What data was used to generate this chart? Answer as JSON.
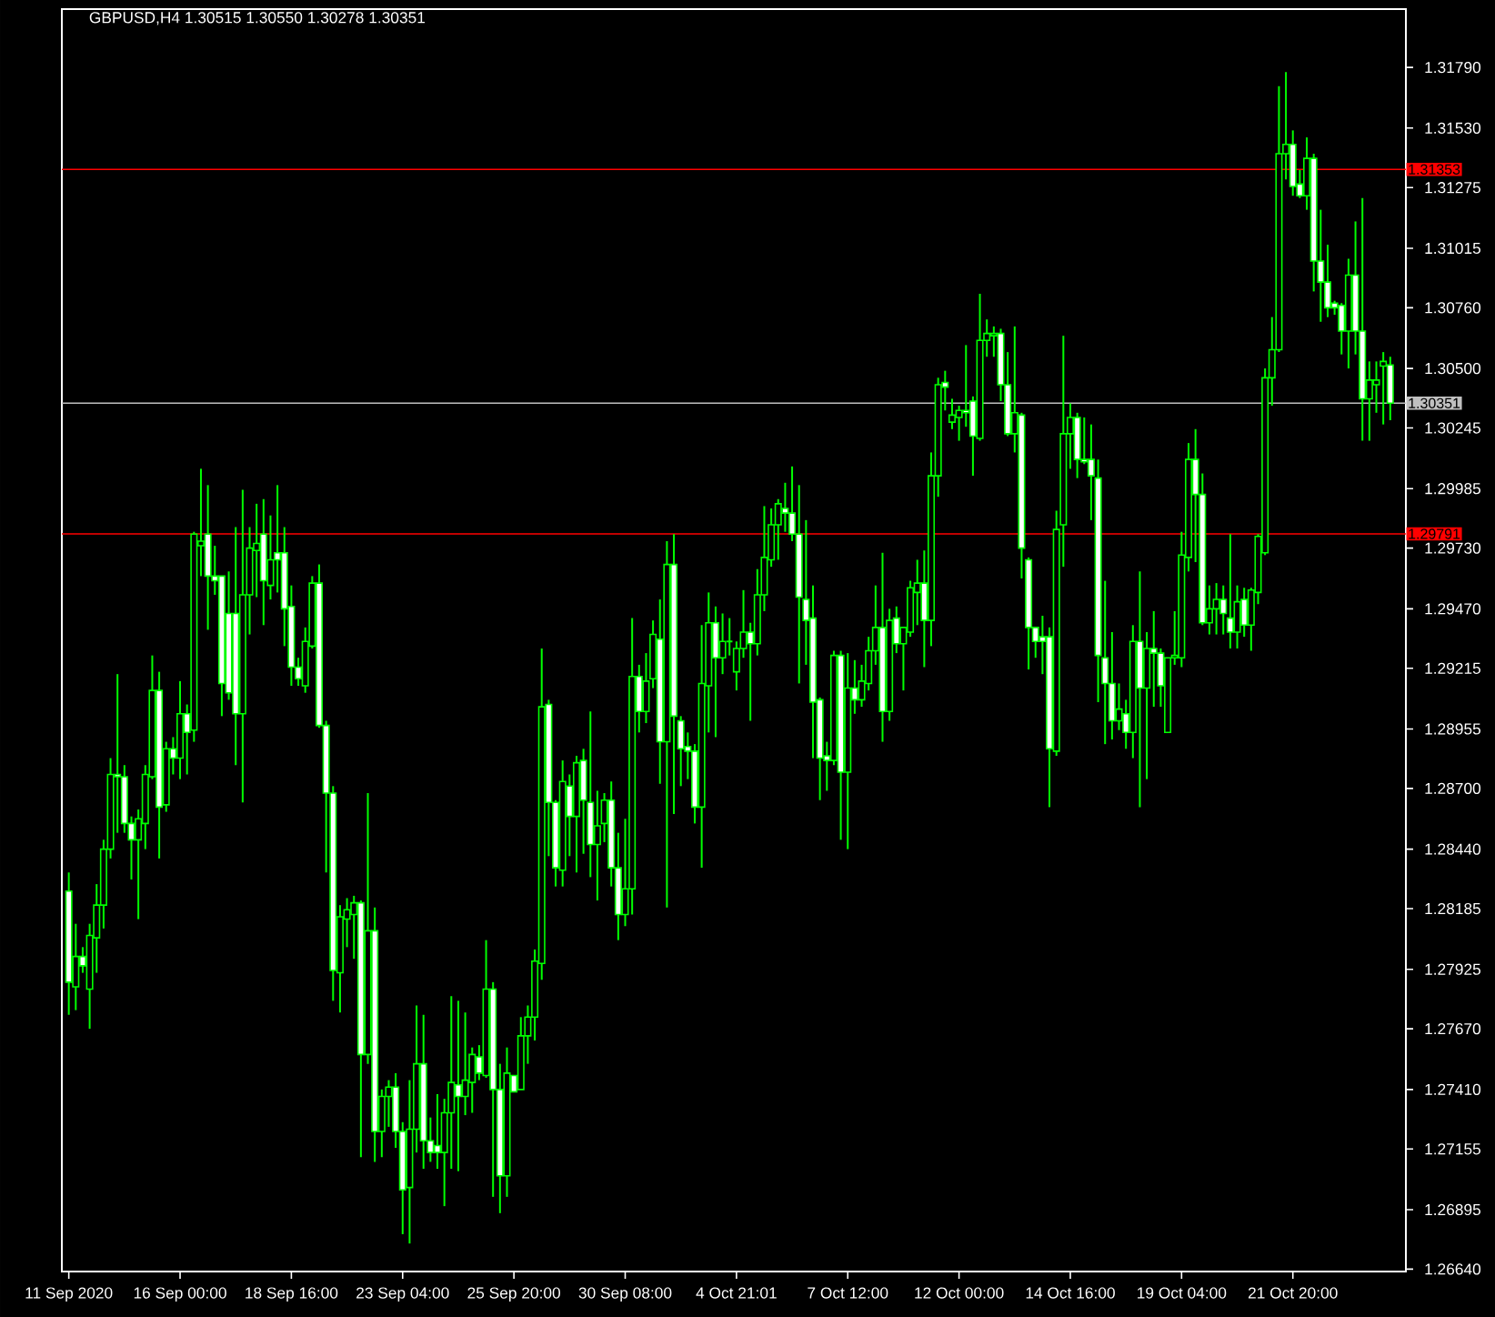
{
  "chart_data": {
    "type": "candlestick",
    "title": "GBPUSD,H4 1.30515 1.30550 1.30278 1.30351",
    "color": "#00ff00",
    "categories": [
      "11 Sep 2020",
      null,
      null,
      null,
      null,
      null,
      null,
      null,
      null,
      null,
      null,
      null,
      null,
      null,
      null,
      null,
      "16 Sep 00:00",
      null,
      null,
      null,
      null,
      null,
      null,
      null,
      null,
      null,
      null,
      null,
      null,
      null,
      null,
      null,
      "18 Sep 16:00",
      null,
      null,
      null,
      null,
      null,
      null,
      null,
      null,
      null,
      null,
      null,
      null,
      null,
      null,
      null,
      "23 Sep 04:00",
      null,
      null,
      null,
      null,
      null,
      null,
      null,
      null,
      null,
      null,
      null,
      null,
      null,
      null,
      null,
      "25 Sep 20:00",
      null,
      null,
      null,
      null,
      null,
      null,
      null,
      null,
      null,
      null,
      null,
      null,
      null,
      null,
      null,
      "30 Sep 08:00",
      null,
      null,
      null,
      null,
      null,
      null,
      null,
      null,
      null,
      null,
      null,
      null,
      null,
      null,
      null,
      "4 Oct 21:01",
      null,
      null,
      null,
      null,
      null,
      null,
      null,
      null,
      null,
      null,
      null,
      null,
      null,
      null,
      null,
      "7 Oct 12:00",
      null,
      null,
      null,
      null,
      null,
      null,
      null,
      null,
      null,
      null,
      null,
      null,
      null,
      null,
      null,
      "12 Oct 00:00",
      null,
      null,
      null,
      null,
      null,
      null,
      null,
      null,
      null,
      null,
      null,
      null,
      null,
      null,
      null,
      "14 Oct 16:00",
      null,
      null,
      null,
      null,
      null,
      null,
      null,
      null,
      null,
      null,
      null,
      null,
      null,
      null,
      null,
      "19 Oct 04:00",
      null,
      null,
      null,
      null,
      null,
      null,
      null,
      null,
      null,
      null,
      null,
      null,
      null,
      null,
      null,
      "21 Oct 20:00",
      null,
      null,
      null,
      null,
      null,
      null,
      null,
      null,
      null,
      null,
      null,
      null,
      null,
      null
    ],
    "ohlc": [
      [
        1.2826,
        1.2834,
        1.2773,
        1.2787
      ],
      [
        1.2785,
        1.2812,
        1.2775,
        1.2798
      ],
      [
        1.2798,
        1.2802,
        1.2791,
        1.2794
      ],
      [
        1.2784,
        1.2812,
        1.2767,
        1.2807
      ],
      [
        1.2806,
        1.2829,
        1.2791,
        1.282
      ],
      [
        1.282,
        1.2848,
        1.281,
        1.2844
      ],
      [
        1.2844,
        1.2883,
        1.284,
        1.2876
      ],
      [
        1.2876,
        1.2919,
        1.2851,
        1.2875
      ],
      [
        1.2875,
        1.288,
        1.2851,
        1.2855
      ],
      [
        1.2855,
        1.2858,
        1.2831,
        1.2848
      ],
      [
        1.2848,
        1.2861,
        1.2814,
        1.2857
      ],
      [
        1.2855,
        1.288,
        1.2844,
        1.2876
      ],
      [
        1.2875,
        1.2927,
        1.2874,
        1.2912
      ],
      [
        1.2912,
        1.292,
        1.284,
        1.2862
      ],
      [
        1.2863,
        1.289,
        1.286,
        1.2887
      ],
      [
        1.2887,
        1.2892,
        1.2876,
        1.2883
      ],
      [
        1.2883,
        1.2916,
        1.2874,
        1.2902
      ],
      [
        1.2902,
        1.2906,
        1.2876,
        1.2894
      ],
      [
        1.2895,
        1.298,
        1.289,
        1.2979
      ],
      [
        1.2974,
        1.3007,
        1.2961,
        1.2976
      ],
      [
        1.2979,
        1.3,
        1.2938,
        1.2961
      ],
      [
        1.2961,
        1.2974,
        1.2953,
        1.2959
      ],
      [
        1.2961,
        1.2961,
        1.2901,
        1.2915
      ],
      [
        1.2945,
        1.2963,
        1.2908,
        1.2911
      ],
      [
        1.2945,
        1.2982,
        1.288,
        1.2902
      ],
      [
        1.2902,
        1.2998,
        1.2864,
        1.2953
      ],
      [
        1.2953,
        1.2982,
        1.2936,
        1.2973
      ],
      [
        1.2972,
        1.2992,
        1.2952,
        1.2975
      ],
      [
        1.2979,
        1.2994,
        1.294,
        1.2959
      ],
      [
        1.2957,
        1.2987,
        1.2951,
        1.2968
      ],
      [
        1.2971,
        1.3,
        1.2954,
        1.2968
      ],
      [
        1.2971,
        1.2982,
        1.2931,
        1.2947
      ],
      [
        1.2948,
        1.2957,
        1.2914,
        1.2922
      ],
      [
        1.2922,
        1.2926,
        1.2914,
        1.2917
      ],
      [
        1.2914,
        1.2939,
        1.2911,
        1.2933
      ],
      [
        1.2931,
        1.2961,
        1.293,
        1.2958
      ],
      [
        1.2958,
        1.2966,
        1.2896,
        1.2897
      ],
      [
        1.2897,
        1.2899,
        1.2834,
        1.2868
      ],
      [
        1.2868,
        1.2871,
        1.2779,
        1.2792
      ],
      [
        1.2791,
        1.282,
        1.2774,
        1.2815
      ],
      [
        1.2814,
        1.2823,
        1.2802,
        1.2818
      ],
      [
        1.2816,
        1.2824,
        1.2797,
        1.2821
      ],
      [
        1.2821,
        1.2822,
        1.2712,
        1.2756
      ],
      [
        1.2756,
        1.2868,
        1.2752,
        1.2809
      ],
      [
        1.2809,
        1.2819,
        1.271,
        1.2723
      ],
      [
        1.2723,
        1.2741,
        1.2712,
        1.2738
      ],
      [
        1.2738,
        1.2745,
        1.2725,
        1.2742
      ],
      [
        1.2742,
        1.2748,
        1.2716,
        1.2723
      ],
      [
        1.2723,
        1.2727,
        1.2679,
        1.2698
      ],
      [
        1.2699,
        1.2745,
        1.2675,
        1.2724
      ],
      [
        1.2724,
        1.2777,
        1.2714,
        1.2752
      ],
      [
        1.2752,
        1.2773,
        1.2707,
        1.2719
      ],
      [
        1.2719,
        1.2729,
        1.271,
        1.2714
      ],
      [
        1.2717,
        1.2739,
        1.2707,
        1.2714
      ],
      [
        1.2714,
        1.2737,
        1.2691,
        1.2731
      ],
      [
        1.2731,
        1.2781,
        1.2707,
        1.2744
      ],
      [
        1.2743,
        1.2779,
        1.2706,
        1.2738
      ],
      [
        1.2738,
        1.2774,
        1.273,
        1.2745
      ],
      [
        1.2744,
        1.2759,
        1.2731,
        1.2756
      ],
      [
        1.2755,
        1.276,
        1.2745,
        1.2748
      ],
      [
        1.2747,
        1.2805,
        1.2746,
        1.2784
      ],
      [
        1.2784,
        1.2787,
        1.2695,
        1.2741
      ],
      [
        1.2741,
        1.2752,
        1.2688,
        1.2704
      ],
      [
        1.2704,
        1.2759,
        1.2695,
        1.2748
      ],
      [
        1.2747,
        1.2747,
        1.274,
        1.274
      ],
      [
        1.2741,
        1.2772,
        1.2741,
        1.2764
      ],
      [
        1.2764,
        1.2777,
        1.2752,
        1.2772
      ],
      [
        1.2772,
        1.2801,
        1.2762,
        1.2796
      ],
      [
        1.2795,
        1.293,
        1.2788,
        1.2905
      ],
      [
        1.2906,
        1.2908,
        1.2841,
        1.2864
      ],
      [
        1.2864,
        1.2865,
        1.2828,
        1.2836
      ],
      [
        1.2835,
        1.2882,
        1.2828,
        1.2873
      ],
      [
        1.2871,
        1.2876,
        1.2841,
        1.2858
      ],
      [
        1.2858,
        1.2884,
        1.2834,
        1.2881
      ],
      [
        1.2882,
        1.2887,
        1.2842,
        1.2865
      ],
      [
        1.2864,
        1.2903,
        1.2832,
        1.2846
      ],
      [
        1.2846,
        1.2869,
        1.2822,
        1.2854
      ],
      [
        1.2855,
        1.2868,
        1.2847,
        1.2865
      ],
      [
        1.2865,
        1.2873,
        1.2828,
        1.2836
      ],
      [
        1.2836,
        1.2851,
        1.2805,
        1.2816
      ],
      [
        1.2816,
        1.2857,
        1.2811,
        1.2827
      ],
      [
        1.2827,
        1.2943,
        1.2816,
        1.2918
      ],
      [
        1.2918,
        1.2923,
        1.2894,
        1.2903
      ],
      [
        1.2903,
        1.2928,
        1.2898,
        1.2916
      ],
      [
        1.2917,
        1.2942,
        1.2913,
        1.2936
      ],
      [
        1.2934,
        1.2951,
        1.2872,
        1.289
      ],
      [
        1.289,
        1.2976,
        1.2819,
        1.2966
      ],
      [
        1.2966,
        1.2979,
        1.2859,
        1.2901
      ],
      [
        1.2899,
        1.2901,
        1.2871,
        1.2887
      ],
      [
        1.2888,
        1.2894,
        1.2874,
        1.2886
      ],
      [
        1.2886,
        1.2889,
        1.2855,
        1.2862
      ],
      [
        1.2862,
        1.294,
        1.2836,
        1.2915
      ],
      [
        1.2914,
        1.2954,
        1.2894,
        1.2941
      ],
      [
        1.2941,
        1.2948,
        1.2892,
        1.2926
      ],
      [
        1.2926,
        1.2945,
        1.2919,
        1.2933
      ],
      [
        1.2933,
        1.2943,
        1.2927,
        1.2933
      ],
      [
        1.292,
        1.2933,
        1.2912,
        1.293
      ],
      [
        1.293,
        1.2955,
        1.2926,
        1.2937
      ],
      [
        1.2937,
        1.2941,
        1.2899,
        1.2932
      ],
      [
        1.2932,
        1.2964,
        1.2927,
        1.2953
      ],
      [
        1.2953,
        1.2991,
        1.2946,
        1.2969
      ],
      [
        1.2968,
        1.299,
        1.2965,
        1.2983
      ],
      [
        1.2983,
        1.2994,
        1.2968,
        1.2992
      ],
      [
        1.299,
        1.3001,
        1.298,
        1.2988
      ],
      [
        1.2988,
        1.3008,
        1.2976,
        1.2979
      ],
      [
        1.2979,
        1.3,
        1.2915,
        1.2952
      ],
      [
        1.2951,
        1.2985,
        1.2923,
        1.2942
      ],
      [
        1.2943,
        1.2957,
        1.2883,
        1.2907
      ],
      [
        1.2908,
        1.2909,
        1.2865,
        1.2883
      ],
      [
        1.2884,
        1.289,
        1.2869,
        1.2882
      ],
      [
        1.2882,
        1.2929,
        1.288,
        1.2927
      ],
      [
        1.2927,
        1.2929,
        1.2848,
        1.2877
      ],
      [
        1.2877,
        1.2928,
        1.2844,
        1.2913
      ],
      [
        1.2913,
        1.2925,
        1.2902,
        1.2908
      ],
      [
        1.2908,
        1.2923,
        1.2905,
        1.2916
      ],
      [
        1.2915,
        1.2935,
        1.2912,
        1.2929
      ],
      [
        1.2929,
        1.2957,
        1.2923,
        1.2939
      ],
      [
        1.2939,
        1.2971,
        1.289,
        1.2903
      ],
      [
        1.2903,
        1.2947,
        1.2899,
        1.2942
      ],
      [
        1.2943,
        1.2948,
        1.2928,
        1.2932
      ],
      [
        1.2932,
        1.2939,
        1.2912,
        1.2939
      ],
      [
        1.2937,
        1.2959,
        1.2935,
        1.2956
      ],
      [
        1.2954,
        1.2968,
        1.294,
        1.2958
      ],
      [
        1.2958,
        1.2972,
        1.2922,
        1.2942
      ],
      [
        1.2942,
        1.3014,
        1.2931,
        1.3004
      ],
      [
        1.3004,
        1.3046,
        1.2995,
        1.3043
      ],
      [
        1.3044,
        1.3049,
        1.3032,
        1.3042
      ],
      [
        1.3027,
        1.3037,
        1.3024,
        1.303
      ],
      [
        1.3029,
        1.3034,
        1.3019,
        1.3032
      ],
      [
        1.3032,
        1.306,
        1.3025,
        1.3031
      ],
      [
        1.3036,
        1.3038,
        1.3004,
        1.3021
      ],
      [
        1.302,
        1.3082,
        1.3019,
        1.3062
      ],
      [
        1.3062,
        1.3071,
        1.3055,
        1.3065
      ],
      [
        1.3064,
        1.3068,
        1.3055,
        1.3065
      ],
      [
        1.3065,
        1.3067,
        1.3036,
        1.3043
      ],
      [
        1.3043,
        1.3057,
        1.3021,
        1.3022
      ],
      [
        1.3022,
        1.3068,
        1.3014,
        1.3031
      ],
      [
        1.303,
        1.3031,
        1.296,
        1.2973
      ],
      [
        1.2968,
        1.2969,
        1.2921,
        1.2939
      ],
      [
        1.2939,
        1.2939,
        1.2926,
        1.2933
      ],
      [
        1.2935,
        1.2944,
        1.2919,
        1.2933
      ],
      [
        1.2935,
        1.2939,
        1.2862,
        1.2887
      ],
      [
        1.2886,
        1.2989,
        1.2884,
        1.2981
      ],
      [
        1.2983,
        1.3064,
        1.2965,
        1.3022
      ],
      [
        1.3022,
        1.3035,
        1.3007,
        1.3029
      ],
      [
        1.3029,
        1.3031,
        1.3003,
        1.3011
      ],
      [
        1.3011,
        1.3029,
        1.3009,
        1.301
      ],
      [
        1.3011,
        1.3026,
        1.2985,
        1.3004
      ],
      [
        1.3003,
        1.3011,
        1.2907,
        1.2927
      ],
      [
        1.2926,
        1.2959,
        1.2889,
        1.2915
      ],
      [
        1.2915,
        1.2937,
        1.2891,
        1.2899
      ],
      [
        1.2899,
        1.2915,
        1.2895,
        1.2904
      ],
      [
        1.2902,
        1.2908,
        1.2887,
        1.2894
      ],
      [
        1.2894,
        1.294,
        1.2883,
        1.2933
      ],
      [
        1.2933,
        1.2963,
        1.2862,
        1.2913
      ],
      [
        1.2913,
        1.2937,
        1.2874,
        1.293
      ],
      [
        1.293,
        1.2946,
        1.2905,
        1.2928
      ],
      [
        1.2928,
        1.293,
        1.2905,
        1.2914
      ],
      [
        1.2894,
        1.2926,
        1.2894,
        1.2926
      ],
      [
        1.2926,
        1.2946,
        1.2923,
        1.2927
      ],
      [
        1.2926,
        1.298,
        1.2922,
        1.297
      ],
      [
        1.2969,
        1.3018,
        1.2963,
        1.3011
      ],
      [
        1.3011,
        1.3024,
        1.2967,
        1.2996
      ],
      [
        1.2996,
        1.3005,
        1.294,
        1.2941
      ],
      [
        1.2941,
        1.2957,
        1.2936,
        1.2947
      ],
      [
        1.2947,
        1.2958,
        1.2936,
        1.2951
      ],
      [
        1.2951,
        1.2957,
        1.2936,
        1.2945
      ],
      [
        1.2943,
        1.2979,
        1.293,
        1.2937
      ],
      [
        1.2937,
        1.2957,
        1.293,
        1.295
      ],
      [
        1.2951,
        1.2956,
        1.2935,
        1.294
      ],
      [
        1.294,
        1.2956,
        1.2929,
        1.2955
      ],
      [
        1.2954,
        1.2979,
        1.2949,
        1.2978
      ],
      [
        1.2971,
        1.305,
        1.297,
        1.3046
      ],
      [
        1.3046,
        1.3072,
        1.3034,
        1.3058
      ],
      [
        1.3058,
        1.3171,
        1.3057,
        1.3142
      ],
      [
        1.3142,
        1.3177,
        1.3131,
        1.3146
      ],
      [
        1.3146,
        1.3152,
        1.3124,
        1.3128
      ],
      [
        1.3129,
        1.3135,
        1.3123,
        1.3124
      ],
      [
        1.3124,
        1.3149,
        1.3118,
        1.314
      ],
      [
        1.314,
        1.3142,
        1.3083,
        1.3096
      ],
      [
        1.3096,
        1.3118,
        1.307,
        1.3087
      ],
      [
        1.3087,
        1.3103,
        1.3072,
        1.3076
      ],
      [
        1.3078,
        1.3079,
        1.3073,
        1.3076
      ],
      [
        1.3077,
        1.3078,
        1.3056,
        1.3066
      ],
      [
        1.3066,
        1.3097,
        1.305,
        1.309
      ],
      [
        1.309,
        1.3113,
        1.3056,
        1.3066
      ],
      [
        1.3066,
        1.3123,
        1.3019,
        1.3037
      ],
      [
        1.3037,
        1.3053,
        1.3019,
        1.3045
      ],
      [
        1.3043,
        1.3053,
        1.3031,
        1.3045
      ],
      [
        1.3051,
        1.3057,
        1.3026,
        1.3053
      ],
      [
        1.30515,
        1.3055,
        1.30278,
        1.30351
      ]
    ],
    "ylim": [
      1.2663,
      1.3204
    ],
    "yticks": [
      {
        "value": 1.3179,
        "label": "1.31790"
      },
      {
        "value": 1.3153,
        "label": "1.31530"
      },
      {
        "value": 1.31275,
        "label": "1.31275"
      },
      {
        "value": 1.31015,
        "label": "1.31015"
      },
      {
        "value": 1.3076,
        "label": "1.30760"
      },
      {
        "value": 1.305,
        "label": "1.30500"
      },
      {
        "value": 1.30245,
        "label": "1.30245"
      },
      {
        "value": 1.29985,
        "label": "1.29985"
      },
      {
        "value": 1.2973,
        "label": "1.29730"
      },
      {
        "value": 1.2947,
        "label": "1.29470"
      },
      {
        "value": 1.29215,
        "label": "1.29215"
      },
      {
        "value": 1.28955,
        "label": "1.28955"
      },
      {
        "value": 1.287,
        "label": "1.28700"
      },
      {
        "value": 1.2844,
        "label": "1.28440"
      },
      {
        "value": 1.28185,
        "label": "1.28185"
      },
      {
        "value": 1.27925,
        "label": "1.27925"
      },
      {
        "value": 1.2767,
        "label": "1.27670"
      },
      {
        "value": 1.2741,
        "label": "1.27410"
      },
      {
        "value": 1.27155,
        "label": "1.27155"
      },
      {
        "value": 1.26895,
        "label": "1.26895"
      },
      {
        "value": 1.2664,
        "label": "1.26640"
      }
    ],
    "ref_lines": [
      {
        "axis": "y",
        "value": 1.31353,
        "label": "1.31353",
        "color": "#ff0000"
      },
      {
        "axis": "y",
        "value": 1.30351,
        "label": "1.30351",
        "color": "#c0c0c0"
      },
      {
        "axis": "y",
        "value": 1.29791,
        "label": "1.29791",
        "color": "#ff0000"
      }
    ]
  }
}
